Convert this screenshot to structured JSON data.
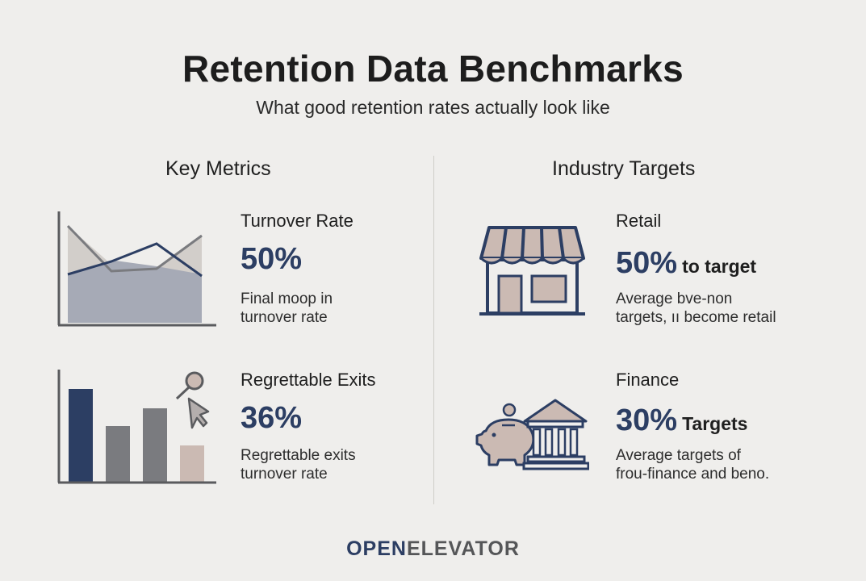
{
  "header": {
    "title": "Retention Data Benchmarks",
    "subtitle": "What good retention rates actually look like"
  },
  "key_metrics": {
    "heading": "Key Metrics",
    "items": [
      {
        "title": "Turnover Rate",
        "value": "50%",
        "desc_line1": "Final moop in",
        "desc_line2": "turnover rate"
      },
      {
        "title": "Regrettable Exits",
        "value": "36%",
        "desc_line1": "Regrettable exits",
        "desc_line2": "turnover rate"
      }
    ]
  },
  "industry_targets": {
    "heading": "Industry Targets",
    "items": [
      {
        "title": "Retail",
        "value": "50%",
        "suffix": "to target",
        "desc_line1": "Average bve-non",
        "desc_line2": "targets, ıı become retail"
      },
      {
        "title": "Finance",
        "value": "30%",
        "suffix": "Targets",
        "desc_line1": "Average targets of",
        "desc_line2": "frou-finance and beno."
      }
    ]
  },
  "logo": {
    "part1": "OPEN",
    "part2": "ELEVATOR"
  },
  "icons": {
    "area_chart": "area-chart-icon",
    "bar_chart": "bar-chart-icon",
    "person": "person-cursor-icon",
    "store": "storefront-icon",
    "piggy": "piggy-bank-icon",
    "bank": "bank-building-icon"
  },
  "colors": {
    "navy": "#2c3e63",
    "gray": "#7a7b7f",
    "beige": "#cbbab3",
    "background": "#efeeec"
  }
}
